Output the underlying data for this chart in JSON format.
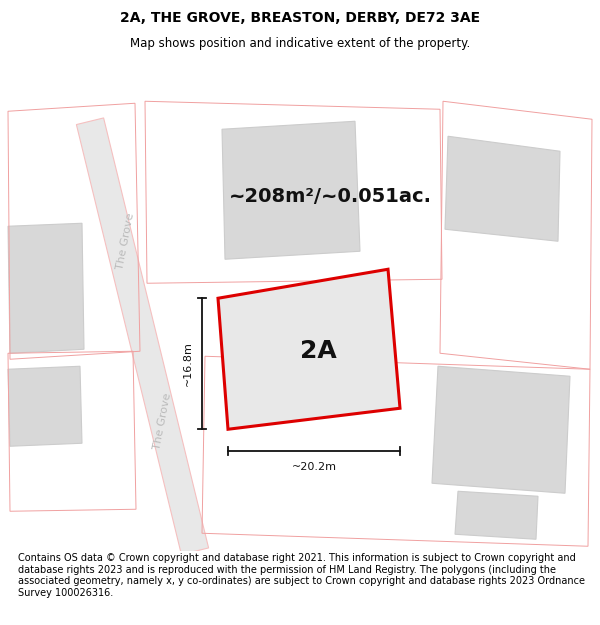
{
  "title": "2A, THE GROVE, BREASTON, DERBY, DE72 3AE",
  "subtitle": "Map shows position and indicative extent of the property.",
  "footer": "Contains OS data © Crown copyright and database right 2021. This information is subject to Crown copyright and database rights 2023 and is reproduced with the permission of HM Land Registry. The polygons (including the associated geometry, namely x, y co-ordinates) are subject to Crown copyright and database rights 2023 Ordnance Survey 100026316.",
  "area_label": "~208m²/~0.051ac.",
  "plot_label": "2A",
  "dim_width": "~20.2m",
  "dim_height": "~16.8m",
  "bg_color": "#ffffff",
  "road_fill": "#e8e8e8",
  "road_edge": "#f5c0c0",
  "building_fill": "#d8d8d8",
  "building_edge": "#cccccc",
  "plot_fill": "#e8e8e8",
  "plot_edge": "#dd0000",
  "neighbor_edge": "#f0a0a0",
  "street_color": "#bbbbbb",
  "dim_color": "#111111",
  "title_fontsize": 10,
  "subtitle_fontsize": 8.5,
  "footer_fontsize": 7,
  "area_fontsize": 14,
  "plot_label_fontsize": 18,
  "street_fontsize": 8,
  "dim_fontsize": 8
}
